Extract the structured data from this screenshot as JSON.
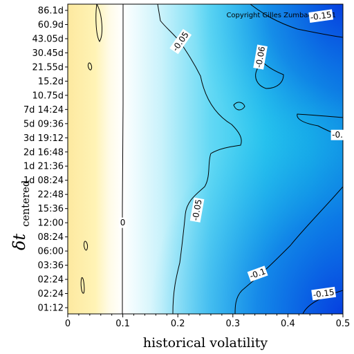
{
  "chart_data": {
    "type": "heatmap",
    "copyright": "Copyright Gilles Zumbach 2011",
    "xlabel": "historical volatility",
    "ylabel_main": "δt",
    "ylabel_sub": "centered",
    "x_ticks": [
      "0",
      "0.1",
      "0.2",
      "0.3",
      "0.4",
      "0.5"
    ],
    "xlim": [
      0,
      0.5
    ],
    "y_ticks": [
      "01:12",
      "02:24",
      "02:24",
      "03:36",
      "06:00",
      "08:24",
      "12:00",
      "15:36",
      "22:48",
      "1d 08:24",
      "1d 21:36",
      "2d 16:48",
      "3d 19:12",
      "5d 09:36",
      "7d 14:24",
      "10.75d",
      "15.2d",
      "21.55d",
      "30.45d",
      "43.05d",
      "60.9d",
      "86.1d"
    ],
    "contour_labels": [
      {
        "text": "0",
        "x": 0.1,
        "row": 6.0
      },
      {
        "text": "-0.05",
        "x": 0.205,
        "row": 18.8
      },
      {
        "text": "-0.05",
        "x": 0.235,
        "row": 6.9
      },
      {
        "text": "-0.06",
        "x": 0.35,
        "row": 17.7
      },
      {
        "text": "-0.1",
        "x": 0.345,
        "row": 2.4
      },
      {
        "text": "-0.15",
        "x": 0.46,
        "row": 20.6
      },
      {
        "text": "-0.15",
        "x": 0.465,
        "row": 1.0
      },
      {
        "text": "-0.",
        "x": 0.49,
        "row": 12.2
      }
    ],
    "colors": {
      "yellow": "#fff5b8",
      "white": "#ffffff",
      "cyan": "#1ec0ec",
      "blue": "#0a58e4"
    },
    "grid": false
  }
}
